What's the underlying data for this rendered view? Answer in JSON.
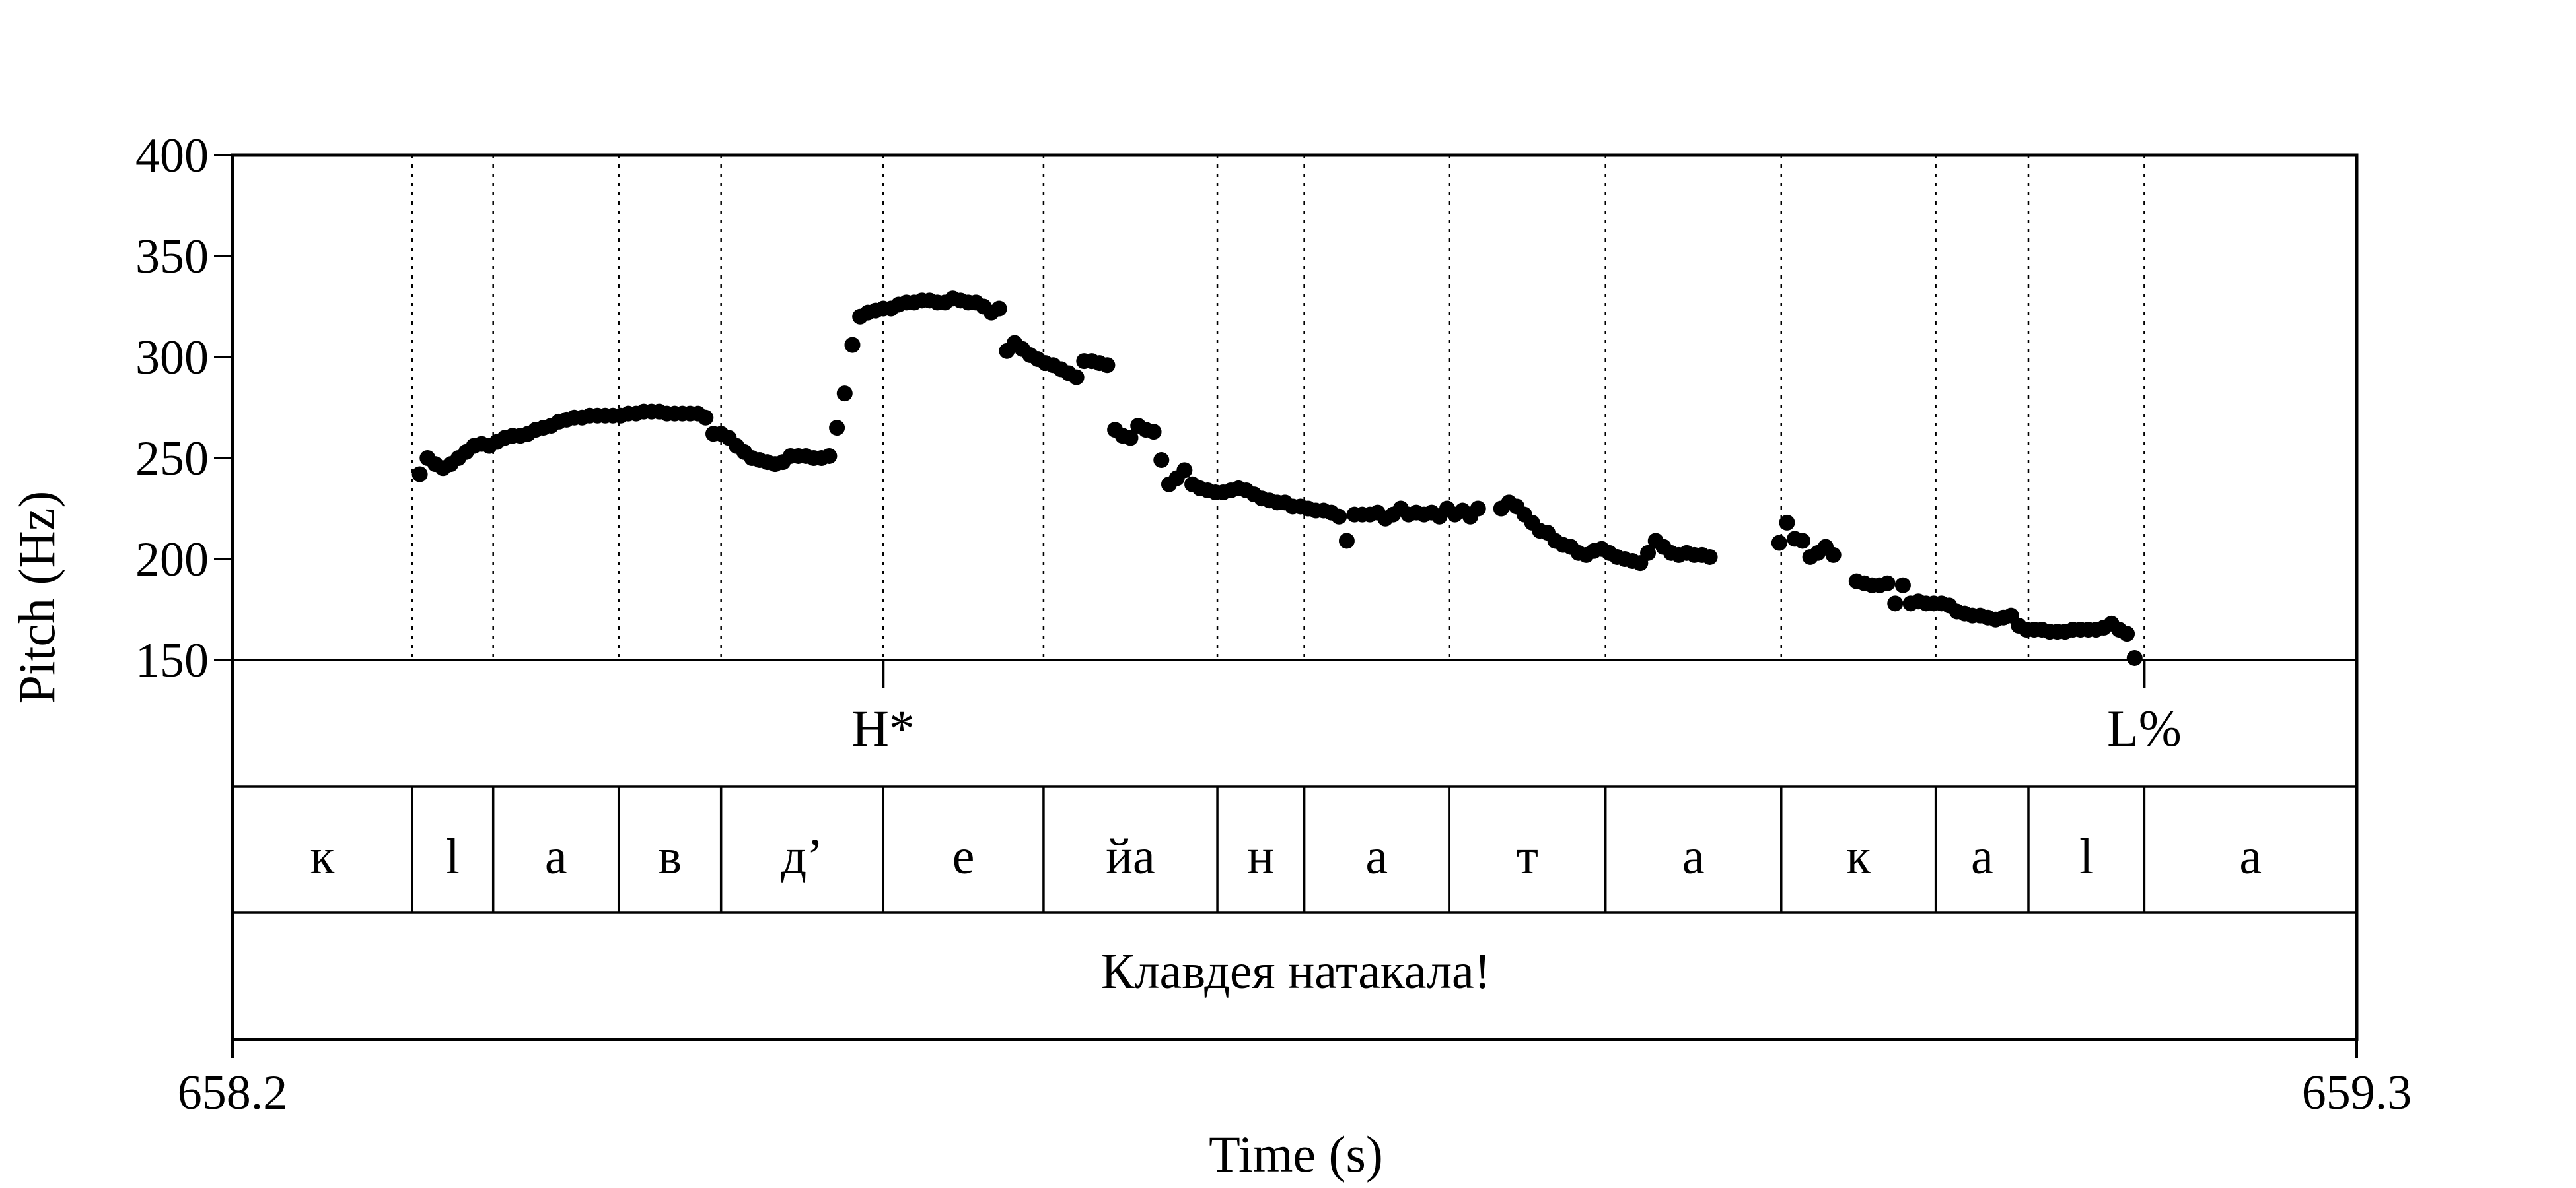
{
  "chart_data": {
    "type": "scatter",
    "ylabel": "Pitch (Hz)",
    "xlabel": "Time (s)",
    "xlim": [
      658.2,
      659.3
    ],
    "ylim": [
      150,
      400
    ],
    "x_tick_labels": [
      "658.2",
      "659.3"
    ],
    "y_ticks": [
      150,
      200,
      250,
      300,
      350,
      400
    ],
    "grid": "dotted vertical lines at segment boundaries",
    "marker_color": "#000000",
    "tones": [
      {
        "label": "H*",
        "t": 658.537
      },
      {
        "label": "L%",
        "t": 659.19
      }
    ],
    "segments": [
      {
        "label": "к",
        "start": 658.2,
        "end": 658.293
      },
      {
        "label": "l",
        "start": 658.293,
        "end": 658.335
      },
      {
        "label": "а",
        "start": 658.335,
        "end": 658.4
      },
      {
        "label": "в",
        "start": 658.4,
        "end": 658.453
      },
      {
        "label": "д’",
        "start": 658.453,
        "end": 658.537
      },
      {
        "label": "е",
        "start": 658.537,
        "end": 658.62
      },
      {
        "label": "йа",
        "start": 658.62,
        "end": 658.71
      },
      {
        "label": "н",
        "start": 658.71,
        "end": 658.755
      },
      {
        "label": "а",
        "start": 658.755,
        "end": 658.83
      },
      {
        "label": "т",
        "start": 658.83,
        "end": 658.911
      },
      {
        "label": "а",
        "start": 658.911,
        "end": 659.002
      },
      {
        "label": "к",
        "start": 659.002,
        "end": 659.082
      },
      {
        "label": "а",
        "start": 659.082,
        "end": 659.13
      },
      {
        "label": "l",
        "start": 659.13,
        "end": 659.19
      },
      {
        "label": "а",
        "start": 659.19,
        "end": 659.3
      }
    ],
    "utterance": "Клавдея натакала!",
    "points": [
      [
        658.297,
        242
      ],
      [
        658.301,
        250
      ],
      [
        658.305,
        247
      ],
      [
        658.309,
        245
      ],
      [
        658.313,
        247
      ],
      [
        658.317,
        250
      ],
      [
        658.321,
        253
      ],
      [
        658.325,
        256
      ],
      [
        658.329,
        257
      ],
      [
        658.333,
        256
      ],
      [
        658.337,
        258
      ],
      [
        658.341,
        260
      ],
      [
        658.345,
        261
      ],
      [
        658.349,
        261
      ],
      [
        658.353,
        262
      ],
      [
        658.357,
        264
      ],
      [
        658.361,
        265
      ],
      [
        658.365,
        266
      ],
      [
        658.369,
        268
      ],
      [
        658.373,
        269
      ],
      [
        658.377,
        270
      ],
      [
        658.381,
        270
      ],
      [
        658.385,
        271
      ],
      [
        658.389,
        271
      ],
      [
        658.393,
        271
      ],
      [
        658.397,
        271
      ],
      [
        658.401,
        271
      ],
      [
        658.405,
        272
      ],
      [
        658.409,
        272
      ],
      [
        658.413,
        273
      ],
      [
        658.417,
        273
      ],
      [
        658.421,
        273
      ],
      [
        658.425,
        272
      ],
      [
        658.429,
        272
      ],
      [
        658.433,
        272
      ],
      [
        658.437,
        272
      ],
      [
        658.441,
        272
      ],
      [
        658.445,
        270
      ],
      [
        658.449,
        262
      ],
      [
        658.453,
        262
      ],
      [
        658.457,
        260
      ],
      [
        658.461,
        256
      ],
      [
        658.465,
        253
      ],
      [
        658.469,
        250
      ],
      [
        658.473,
        249
      ],
      [
        658.477,
        248
      ],
      [
        658.481,
        247
      ],
      [
        658.485,
        248
      ],
      [
        658.489,
        251
      ],
      [
        658.493,
        251
      ],
      [
        658.497,
        251
      ],
      [
        658.501,
        250
      ],
      [
        658.505,
        250
      ],
      [
        658.509,
        251
      ],
      [
        658.513,
        265
      ],
      [
        658.517,
        282
      ],
      [
        658.521,
        306
      ],
      [
        658.525,
        320
      ],
      [
        658.529,
        322
      ],
      [
        658.533,
        323
      ],
      [
        658.537,
        324
      ],
      [
        658.541,
        324
      ],
      [
        658.545,
        326
      ],
      [
        658.549,
        327
      ],
      [
        658.553,
        327
      ],
      [
        658.557,
        328
      ],
      [
        658.561,
        328
      ],
      [
        658.565,
        327
      ],
      [
        658.569,
        327
      ],
      [
        658.573,
        329
      ],
      [
        658.577,
        328
      ],
      [
        658.581,
        327
      ],
      [
        658.585,
        327
      ],
      [
        658.589,
        325
      ],
      [
        658.593,
        322
      ],
      [
        658.597,
        324
      ],
      [
        658.601,
        303
      ],
      [
        658.605,
        307
      ],
      [
        658.609,
        304
      ],
      [
        658.613,
        301
      ],
      [
        658.617,
        299
      ],
      [
        658.621,
        297
      ],
      [
        658.625,
        296
      ],
      [
        658.629,
        294
      ],
      [
        658.633,
        292
      ],
      [
        658.637,
        290
      ],
      [
        658.641,
        298
      ],
      [
        658.645,
        298
      ],
      [
        658.649,
        297
      ],
      [
        658.653,
        296
      ],
      [
        658.657,
        264
      ],
      [
        658.661,
        261
      ],
      [
        658.665,
        260
      ],
      [
        658.669,
        266
      ],
      [
        658.673,
        264
      ],
      [
        658.677,
        263
      ],
      [
        658.681,
        249
      ],
      [
        658.685,
        237
      ],
      [
        658.689,
        240
      ],
      [
        658.693,
        244
      ],
      [
        658.697,
        237
      ],
      [
        658.701,
        235
      ],
      [
        658.705,
        234
      ],
      [
        658.709,
        233
      ],
      [
        658.713,
        233
      ],
      [
        658.717,
        234
      ],
      [
        658.721,
        235
      ],
      [
        658.725,
        234
      ],
      [
        658.729,
        232
      ],
      [
        658.733,
        230
      ],
      [
        658.737,
        229
      ],
      [
        658.741,
        228
      ],
      [
        658.745,
        228
      ],
      [
        658.749,
        226
      ],
      [
        658.753,
        226
      ],
      [
        658.757,
        225
      ],
      [
        658.761,
        224
      ],
      [
        658.765,
        224
      ],
      [
        658.769,
        223
      ],
      [
        658.773,
        221
      ],
      [
        658.777,
        209
      ],
      [
        658.781,
        222
      ],
      [
        658.785,
        222
      ],
      [
        658.789,
        222
      ],
      [
        658.793,
        223
      ],
      [
        658.797,
        220
      ],
      [
        658.801,
        222
      ],
      [
        658.805,
        225
      ],
      [
        658.809,
        222
      ],
      [
        658.813,
        223
      ],
      [
        658.817,
        222
      ],
      [
        658.821,
        223
      ],
      [
        658.825,
        221
      ],
      [
        658.829,
        225
      ],
      [
        658.833,
        222
      ],
      [
        658.837,
        224
      ],
      [
        658.841,
        221
      ],
      [
        658.845,
        225
      ],
      [
        658.857,
        225
      ],
      [
        658.861,
        228
      ],
      [
        658.865,
        226
      ],
      [
        658.869,
        222
      ],
      [
        658.873,
        218
      ],
      [
        658.877,
        214
      ],
      [
        658.881,
        213
      ],
      [
        658.885,
        209
      ],
      [
        658.889,
        207
      ],
      [
        658.893,
        206
      ],
      [
        658.897,
        203
      ],
      [
        658.901,
        202
      ],
      [
        658.905,
        204
      ],
      [
        658.909,
        205
      ],
      [
        658.913,
        203
      ],
      [
        658.917,
        201
      ],
      [
        658.921,
        200
      ],
      [
        658.925,
        199
      ],
      [
        658.929,
        198
      ],
      [
        658.933,
        203
      ],
      [
        658.937,
        209
      ],
      [
        658.941,
        206
      ],
      [
        658.945,
        203
      ],
      [
        658.949,
        202
      ],
      [
        658.953,
        203
      ],
      [
        658.957,
        202
      ],
      [
        658.961,
        202
      ],
      [
        658.965,
        201
      ],
      [
        659.001,
        208
      ],
      [
        659.005,
        218
      ],
      [
        659.009,
        210
      ],
      [
        659.013,
        209
      ],
      [
        659.017,
        201
      ],
      [
        659.021,
        203
      ],
      [
        659.025,
        206
      ],
      [
        659.029,
        202
      ],
      [
        659.041,
        189
      ],
      [
        659.045,
        188
      ],
      [
        659.049,
        187
      ],
      [
        659.053,
        187
      ],
      [
        659.057,
        188
      ],
      [
        659.061,
        178
      ],
      [
        659.065,
        187
      ],
      [
        659.069,
        178
      ],
      [
        659.073,
        179
      ],
      [
        659.077,
        178
      ],
      [
        659.081,
        178
      ],
      [
        659.085,
        178
      ],
      [
        659.089,
        177
      ],
      [
        659.093,
        174
      ],
      [
        659.097,
        173
      ],
      [
        659.101,
        172
      ],
      [
        659.105,
        172
      ],
      [
        659.109,
        171
      ],
      [
        659.113,
        170
      ],
      [
        659.117,
        171
      ],
      [
        659.121,
        172
      ],
      [
        659.125,
        167
      ],
      [
        659.129,
        165
      ],
      [
        659.133,
        165
      ],
      [
        659.137,
        165
      ],
      [
        659.141,
        164
      ],
      [
        659.145,
        164
      ],
      [
        659.149,
        164
      ],
      [
        659.153,
        165
      ],
      [
        659.157,
        165
      ],
      [
        659.161,
        165
      ],
      [
        659.165,
        165
      ],
      [
        659.169,
        166
      ],
      [
        659.173,
        168
      ],
      [
        659.177,
        165
      ],
      [
        659.181,
        163
      ],
      [
        659.185,
        151
      ]
    ]
  }
}
